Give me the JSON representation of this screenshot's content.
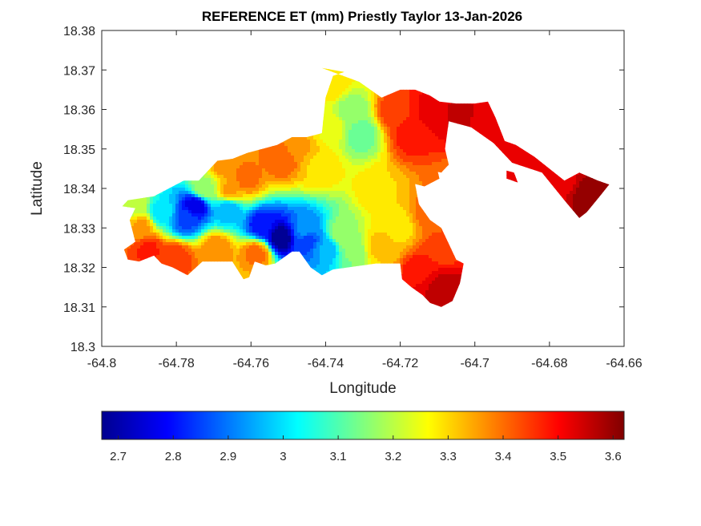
{
  "chart_data": {
    "type": "heatmap",
    "title": "REFERENCE ET (mm) Priestly Taylor 13-Jan-2026",
    "xlabel": "Longitude",
    "ylabel": "Latitude",
    "xlim": [
      -64.8,
      -64.66
    ],
    "ylim": [
      18.3,
      18.38
    ],
    "xticks": [
      -64.8,
      -64.78,
      -64.76,
      -64.74,
      -64.72,
      -64.7,
      -64.68,
      -64.66
    ],
    "xtick_labels": [
      "-64.8",
      "-64.78",
      "-64.76",
      "-64.74",
      "-64.72",
      "-64.7",
      "-64.68",
      "-64.66"
    ],
    "yticks": [
      18.3,
      18.31,
      18.32,
      18.33,
      18.34,
      18.35,
      18.36,
      18.37,
      18.38
    ],
    "ytick_labels": [
      "18.3",
      "18.31",
      "18.32",
      "18.33",
      "18.34",
      "18.35",
      "18.36",
      "18.37",
      "18.38"
    ],
    "colorbar": {
      "colormap": "jet",
      "range": [
        2.67,
        3.62
      ],
      "ticks": [
        2.7,
        2.8,
        2.9,
        3,
        3.1,
        3.2,
        3.3,
        3.4,
        3.5,
        3.6
      ],
      "tick_labels": [
        "2.7",
        "2.8",
        "2.9",
        "3",
        "3.1",
        "3.2",
        "3.3",
        "3.4",
        "3.5",
        "3.6"
      ],
      "placement": "bottom"
    },
    "grid": false,
    "outline": [
      [
        -64.793,
        18.337
      ],
      [
        -64.786,
        18.338
      ],
      [
        -64.778,
        18.342
      ],
      [
        -64.774,
        18.342
      ],
      [
        -64.769,
        18.347
      ],
      [
        -64.765,
        18.3475
      ],
      [
        -64.761,
        18.349
      ],
      [
        -64.757,
        18.35
      ],
      [
        -64.753,
        18.351
      ],
      [
        -64.749,
        18.353
      ],
      [
        -64.745,
        18.353
      ],
      [
        -64.741,
        18.354
      ],
      [
        -64.74,
        18.363
      ],
      [
        -64.738,
        18.3685
      ],
      [
        -64.735,
        18.3695
      ],
      [
        -64.741,
        18.3705
      ],
      [
        -64.731,
        18.367
      ],
      [
        -64.725,
        18.363
      ],
      [
        -64.72,
        18.365
      ],
      [
        -64.716,
        18.365
      ],
      [
        -64.712,
        18.3635
      ],
      [
        -64.7095,
        18.362
      ],
      [
        -64.705,
        18.3615
      ],
      [
        -64.7,
        18.3615
      ],
      [
        -64.6965,
        18.362
      ],
      [
        -64.6945,
        18.358
      ],
      [
        -64.692,
        18.352
      ],
      [
        -64.689,
        18.351
      ],
      [
        -64.684,
        18.348
      ],
      [
        -64.676,
        18.342
      ],
      [
        -64.672,
        18.344
      ],
      [
        -64.667,
        18.342
      ],
      [
        -64.664,
        18.341
      ],
      [
        -64.6665,
        18.338
      ],
      [
        -64.67,
        18.334
      ],
      [
        -64.672,
        18.3325
      ],
      [
        -64.676,
        18.337
      ],
      [
        -64.682,
        18.344
      ],
      [
        -64.69,
        18.3465
      ],
      [
        -64.695,
        18.3515
      ],
      [
        -64.701,
        18.3555
      ],
      [
        -64.707,
        18.357
      ],
      [
        -64.708,
        18.35
      ],
      [
        -64.707,
        18.346
      ],
      [
        -64.709,
        18.344
      ],
      [
        -64.714,
        18.345
      ],
      [
        -64.716,
        18.341
      ],
      [
        -64.715,
        18.336
      ],
      [
        -64.712,
        18.332
      ],
      [
        -64.709,
        18.33
      ],
      [
        -64.707,
        18.326
      ],
      [
        -64.705,
        18.322
      ],
      [
        -64.703,
        18.321
      ],
      [
        -64.704,
        18.316
      ],
      [
        -64.706,
        18.3115
      ],
      [
        -64.709,
        18.31
      ],
      [
        -64.712,
        18.311
      ],
      [
        -64.714,
        18.313
      ],
      [
        -64.717,
        18.315
      ],
      [
        -64.7195,
        18.317
      ],
      [
        -64.72,
        18.321
      ],
      [
        -64.7265,
        18.321
      ],
      [
        -64.734,
        18.32
      ],
      [
        -64.738,
        18.3195
      ],
      [
        -64.741,
        18.318
      ],
      [
        -64.744,
        18.32
      ],
      [
        -64.747,
        18.324
      ],
      [
        -64.749,
        18.324
      ],
      [
        -64.7535,
        18.321
      ],
      [
        -64.756,
        18.3205
      ],
      [
        -64.759,
        18.3215
      ],
      [
        -64.7605,
        18.3175
      ],
      [
        -64.762,
        18.317
      ],
      [
        -64.765,
        18.3215
      ],
      [
        -64.773,
        18.3215
      ],
      [
        -64.777,
        18.318
      ],
      [
        -64.781,
        18.32
      ],
      [
        -64.784,
        18.321
      ],
      [
        -64.786,
        18.323
      ],
      [
        -64.79,
        18.3215
      ],
      [
        -64.793,
        18.322
      ],
      [
        -64.794,
        18.3245
      ],
      [
        -64.791,
        18.3265
      ],
      [
        -64.7925,
        18.332
      ],
      [
        -64.791,
        18.335
      ],
      [
        -64.7945,
        18.3355
      ],
      [
        -64.793,
        18.337
      ]
    ],
    "islands": [
      [
        [
          -64.7265,
          18.3435
        ],
        [
          -64.7235,
          18.3455
        ],
        [
          -64.7105,
          18.3465
        ],
        [
          -64.7095,
          18.3425
        ],
        [
          -64.7135,
          18.3405
        ],
        [
          -64.7175,
          18.3415
        ]
      ],
      [
        [
          -64.6915,
          18.3445
        ],
        [
          -64.6895,
          18.344
        ],
        [
          -64.6885,
          18.3415
        ],
        [
          -64.6915,
          18.3425
        ]
      ]
    ],
    "field_points": [
      [
        -64.752,
        18.3275,
        2.68
      ],
      [
        -64.745,
        18.3265,
        2.85
      ],
      [
        -64.74,
        18.3245,
        2.95
      ],
      [
        -64.757,
        18.3305,
        2.8
      ],
      [
        -64.775,
        18.3355,
        2.76
      ],
      [
        -64.7775,
        18.332,
        2.86
      ],
      [
        -64.784,
        18.334,
        3.0
      ],
      [
        -64.766,
        18.3345,
        2.95
      ],
      [
        -64.7305,
        18.3535,
        3.12
      ],
      [
        -64.733,
        18.3595,
        3.15
      ],
      [
        -64.7385,
        18.3555,
        3.25
      ],
      [
        -64.7615,
        18.3425,
        3.4
      ],
      [
        -64.7655,
        18.3395,
        3.35
      ],
      [
        -64.7515,
        18.3475,
        3.42
      ],
      [
        -64.742,
        18.3455,
        3.3
      ],
      [
        -64.7255,
        18.3395,
        3.3
      ],
      [
        -64.7205,
        18.3305,
        3.28
      ],
      [
        -64.7255,
        18.3255,
        3.32
      ],
      [
        -64.733,
        18.3245,
        3.15
      ],
      [
        -64.7215,
        18.3595,
        3.45
      ],
      [
        -64.717,
        18.3535,
        3.48
      ],
      [
        -64.711,
        18.3595,
        3.52
      ],
      [
        -64.7045,
        18.3585,
        3.55
      ],
      [
        -64.6965,
        18.3565,
        3.52
      ],
      [
        -64.688,
        18.348,
        3.52
      ],
      [
        -64.6775,
        18.342,
        3.52
      ],
      [
        -64.669,
        18.338,
        3.6
      ],
      [
        -64.7085,
        18.3145,
        3.58
      ],
      [
        -64.714,
        18.3185,
        3.5
      ],
      [
        -64.709,
        18.3245,
        3.44
      ],
      [
        -64.7125,
        18.3335,
        3.4
      ],
      [
        -64.7875,
        18.3245,
        3.47
      ],
      [
        -64.7895,
        18.3305,
        3.35
      ],
      [
        -64.78,
        18.3225,
        3.45
      ],
      [
        -64.7695,
        18.3245,
        3.38
      ],
      [
        -64.7585,
        18.3235,
        3.4
      ],
      [
        -64.7665,
        18.3465,
        3.38
      ],
      [
        -64.7475,
        18.3505,
        3.35
      ],
      [
        -64.7385,
        18.3665,
        3.3
      ],
      [
        -64.7055,
        18.3415,
        3.4
      ],
      [
        -64.7725,
        18.34,
        3.18
      ],
      [
        -64.791,
        18.3355,
        3.2
      ],
      [
        -64.7455,
        18.3295,
        2.92
      ],
      [
        -64.7355,
        18.3285,
        3.18
      ]
    ]
  }
}
